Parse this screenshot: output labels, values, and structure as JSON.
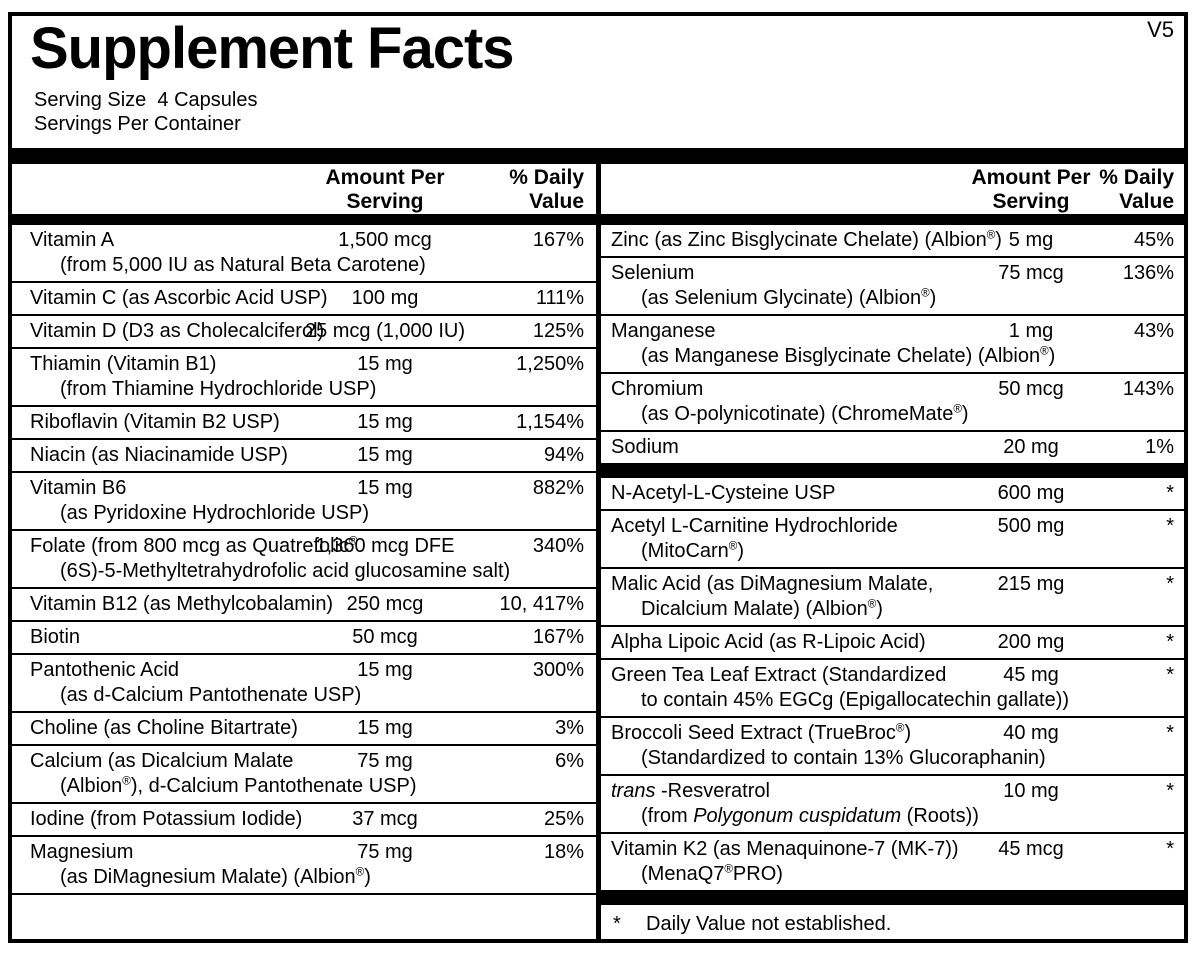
{
  "label": {
    "version": "V5",
    "title": "Supplement Facts",
    "serving_size": "Serving Size  4 Capsules",
    "servings_per_container": "Servings Per Container"
  },
  "column_header": {
    "amount_line1": "Amount Per",
    "amount_line2": "Serving",
    "dv_line1": "% Daily",
    "dv_line2": "Value"
  },
  "columns": {
    "left": {
      "rows": [
        {
          "name": "Vitamin A",
          "amount": "1,500 mcg",
          "dv": "167%",
          "sub": "(from 5,000 IU as Natural Beta Carotene)"
        },
        {
          "name": "Vitamin C (as Ascorbic Acid USP)",
          "amount": "100 mg",
          "dv": "111%"
        },
        {
          "name": "Vitamin D (D3 as Cholecalciferol)",
          "amount": "25 mcg (1,000 IU)",
          "dv": "125%"
        },
        {
          "name": "Thiamin (Vitamin B1)",
          "amount": "15 mg",
          "dv": "1,250%",
          "sub": "(from Thiamine Hydrochloride USP)"
        },
        {
          "name": "Riboflavin (Vitamin B2 USP)",
          "amount": "15 mg",
          "dv": "1,154%"
        },
        {
          "name": "Niacin (as Niacinamide USP)",
          "amount": "15 mg",
          "dv": "94%"
        },
        {
          "name": "Vitamin B6",
          "amount": "15 mg",
          "dv": "882%",
          "sub": "(as Pyridoxine Hydrochloride USP)"
        },
        {
          "name": "Folate (from 800 mcg as Quatrefolic®",
          "amount": "1,360 mcg DFE",
          "dv": "340%",
          "sub": "(6S)-5-Methyltetrahydrofolic acid glucosamine salt)"
        },
        {
          "name": "Vitamin B12 (as Methylcobalamin)",
          "amount": "250 mcg",
          "dv": "10, 417%"
        },
        {
          "name": "Biotin",
          "amount": "50 mcg",
          "dv": "167%"
        },
        {
          "name": "Pantothenic Acid",
          "amount": "15 mg",
          "dv": "300%",
          "sub": "(as d-Calcium Pantothenate USP)"
        },
        {
          "name": "Choline (as Choline Bitartrate)",
          "amount": "15 mg",
          "dv": "3%"
        },
        {
          "name": "Calcium (as Dicalcium Malate",
          "amount": "75 mg",
          "dv": "6%",
          "sub": "(Albion®), d-Calcium Pantothenate USP)"
        },
        {
          "name": "Iodine (from Potassium Iodide)",
          "amount": "37 mcg",
          "dv": "25%"
        },
        {
          "name": "Magnesium",
          "amount": "75 mg",
          "dv": "18%",
          "sub": "(as DiMagnesium Malate) (Albion®)"
        }
      ]
    },
    "right": {
      "rows": [
        {
          "name": "Zinc (as Zinc Bisglycinate Chelate) (Albion®)",
          "amount": "5 mg",
          "dv": "45%"
        },
        {
          "name": "Selenium",
          "amount": "75 mcg",
          "dv": "136%",
          "sub": "(as Selenium Glycinate) (Albion®)"
        },
        {
          "name": "Manganese",
          "amount": "1 mg",
          "dv": "43%",
          "sub": "(as Manganese Bisglycinate Chelate) (Albion®)"
        },
        {
          "name": "Chromium",
          "amount": "50 mcg",
          "dv": "143%",
          "sub": "(as O-polynicotinate) (ChromeMate®)"
        },
        {
          "name": "Sodium",
          "amount": "20 mg",
          "dv": "1%",
          "noborder": true
        },
        {
          "type": "bar"
        },
        {
          "name": "N-Acetyl-L-Cysteine USP",
          "amount": "600 mg",
          "dv": "*"
        },
        {
          "name": "Acetyl L-Carnitine Hydrochloride",
          "amount": "500 mg",
          "dv": "*",
          "sub": "(MitoCarn®)"
        },
        {
          "name": "Malic Acid (as DiMagnesium Malate,",
          "amount": "215 mg",
          "dv": "*",
          "sub": "Dicalcium Malate) (Albion®)"
        },
        {
          "name": "Alpha Lipoic Acid (as R-Lipoic Acid)",
          "amount": "200 mg",
          "dv": "*"
        },
        {
          "name": "Green Tea Leaf Extract (Standardized",
          "amount": "45 mg",
          "dv": "*",
          "sub": "to contain 45% EGCg (Epigallocatechin gallate))"
        },
        {
          "name": "Broccoli Seed Extract (TrueBroc®)",
          "amount": "40 mg",
          "dv": "*",
          "sub": "(Standardized to contain 13% Glucoraphanin)"
        },
        {
          "name": "_trans_ -Resveratrol",
          "amount": "10 mg",
          "dv": "*",
          "sub": "(from _Polygonum cuspidatum_ (Roots))"
        },
        {
          "name": "Vitamin K2 (as Menaquinone-7 (MK-7))",
          "amount": "45 mcg",
          "dv": "*",
          "sub": "(MenaQ7®PRO)",
          "noborder": true
        }
      ],
      "footnote_star": "*",
      "footnote_text": "Daily Value not established."
    }
  },
  "colors": {
    "text": "#000000",
    "background": "#ffffff",
    "border": "#000000"
  }
}
